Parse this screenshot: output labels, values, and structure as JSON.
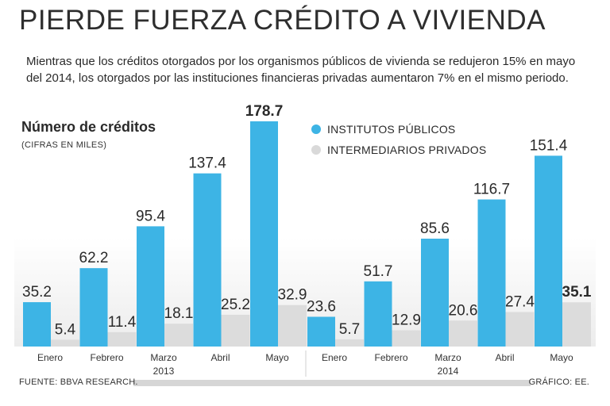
{
  "title": "PIERDE FUERZA CRÉDITO A VIVIENDA",
  "subtitle": "Mientras que los créditos otorgados por los organismos públicos de vivienda se redujeron 15% en mayo del 2014, los otorgados por las instituciones financieras privadas aumentaron 7% en el mismo periodo.",
  "metric": {
    "label": "Número de créditos",
    "sub": "(CIFRAS EN MILES)"
  },
  "legend": [
    {
      "label": "INSTITUTOS PÚBLICOS",
      "color": "#3db4e5"
    },
    {
      "label": "INTERMEDIARIOS PRIVADOS",
      "color": "#d9d9d9"
    }
  ],
  "footer": {
    "source": "FUENTE: BBVA RESEARCH.",
    "credit": "GRÁFICO: EE."
  },
  "chart_data": {
    "type": "bar",
    "title": "Número de créditos",
    "ylabel": "(CIFRAS EN MILES)",
    "xlabel": "",
    "categories": [
      "Enero",
      "Febrero",
      "Marzo",
      "Abril",
      "Mayo",
      "Enero",
      "Febrero",
      "Marzo",
      "Abril",
      "Mayo"
    ],
    "groups": [
      {
        "label": "2013",
        "start": 0,
        "end": 4
      },
      {
        "label": "2014",
        "start": 5,
        "end": 9
      }
    ],
    "series": [
      {
        "name": "INSTITUTOS PÚBLICOS",
        "color": "#3db4e5",
        "values": [
          35.2,
          62.2,
          95.4,
          137.4,
          178.7,
          23.6,
          51.7,
          85.6,
          116.7,
          151.4
        ],
        "labels": [
          "35.2",
          "62.2",
          "95.4",
          "137.4",
          "178.7",
          "23.6",
          "51.7",
          "85.6",
          "116.7",
          "151.4"
        ],
        "bold": [
          4
        ]
      },
      {
        "name": "INTERMEDIARIOS PRIVADOS",
        "color": "#dcdcdc",
        "values": [
          5.4,
          11.4,
          18.1,
          25.2,
          32.9,
          5.7,
          12.9,
          20.6,
          27.4,
          35.1
        ],
        "labels": [
          "5.4",
          "11.4",
          "18.1",
          "25.2",
          "32.9",
          "5.7",
          "12.9",
          "20.6",
          "27.4",
          "35.1"
        ],
        "bold": [
          9
        ]
      }
    ],
    "ylim": [
      0,
      178.7
    ],
    "grid": false
  }
}
